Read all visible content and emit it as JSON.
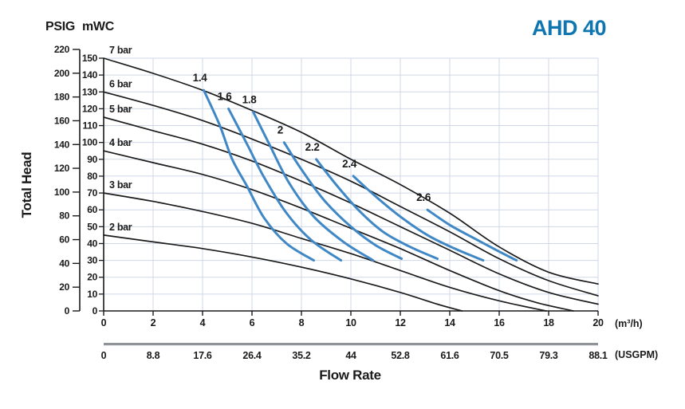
{
  "colors": {
    "model_blue": "#0f76b0",
    "impeller_curve_blue": "#3f88c5",
    "pressure_curve_black": "#1b1b1b",
    "grid": "#cfd7e7",
    "usgpm_bar": "#8f9296",
    "text": "#1a1a1a"
  },
  "chart_data": {
    "type": "line",
    "title": "AHD 40",
    "xlabel": "Flow Rate",
    "ylabel": "Total Head",
    "grid": true,
    "legend": "none",
    "x_axis_primary": {
      "unit": "(m³/h)",
      "tick_labels": [
        "0",
        "2",
        "4",
        "6",
        "8",
        "10",
        "12",
        "14",
        "16",
        "18",
        "20"
      ],
      "tick_values": [
        0,
        2,
        4,
        6,
        8,
        10,
        12,
        14,
        16,
        18,
        20
      ],
      "range": [
        0,
        20
      ]
    },
    "x_axis_secondary": {
      "unit": "(USGPM)",
      "tick_labels": [
        "0",
        "8.8",
        "17.6",
        "26.4",
        "35.2",
        "44",
        "52.8",
        "61.6",
        "70.5",
        "79.3",
        "88.1"
      ]
    },
    "y_axis_primary": {
      "unit": "mWC",
      "tick_values": [
        150,
        140,
        130,
        120,
        110,
        100,
        90,
        80,
        70,
        60,
        50,
        40,
        30,
        20,
        10,
        0
      ],
      "range": [
        0,
        150
      ]
    },
    "y_axis_secondary": {
      "unit": "PSIG",
      "tick_values": [
        220,
        200,
        180,
        160,
        140,
        120,
        100,
        80,
        60,
        40,
        20,
        0
      ],
      "range": [
        0,
        220
      ]
    },
    "pressure_curves": [
      {
        "label": "7 bar",
        "points": [
          [
            0,
            150
          ],
          [
            2,
            141
          ],
          [
            4,
            131
          ],
          [
            6,
            119
          ],
          [
            8,
            106
          ],
          [
            10,
            90
          ],
          [
            12,
            75
          ],
          [
            14,
            58
          ],
          [
            16,
            38
          ],
          [
            18,
            23
          ],
          [
            20,
            16
          ]
        ]
      },
      {
        "label": "6 bar",
        "points": [
          [
            0,
            130
          ],
          [
            2,
            122
          ],
          [
            4,
            113
          ],
          [
            6,
            102
          ],
          [
            8,
            90
          ],
          [
            10,
            77
          ],
          [
            12,
            62
          ],
          [
            14,
            47
          ],
          [
            16,
            31
          ],
          [
            18,
            18
          ],
          [
            20,
            9
          ]
        ]
      },
      {
        "label": "5 bar",
        "points": [
          [
            0,
            115
          ],
          [
            2,
            107
          ],
          [
            4,
            99
          ],
          [
            6,
            89
          ],
          [
            8,
            77
          ],
          [
            10,
            64
          ],
          [
            12,
            50
          ],
          [
            14,
            36
          ],
          [
            16,
            22
          ],
          [
            18,
            11
          ],
          [
            20,
            4
          ]
        ]
      },
      {
        "label": "4 bar",
        "points": [
          [
            0,
            95
          ],
          [
            2,
            88
          ],
          [
            4,
            81
          ],
          [
            6,
            72
          ],
          [
            8,
            61
          ],
          [
            10,
            49
          ],
          [
            12,
            37
          ],
          [
            14,
            24
          ],
          [
            16,
            12
          ],
          [
            17.5,
            5
          ],
          [
            19,
            0
          ]
        ]
      },
      {
        "label": "3 bar",
        "points": [
          [
            0,
            70
          ],
          [
            2,
            65
          ],
          [
            4,
            59
          ],
          [
            6,
            52
          ],
          [
            8,
            43
          ],
          [
            10,
            34
          ],
          [
            12,
            24
          ],
          [
            14,
            14
          ],
          [
            16,
            6
          ],
          [
            17.9,
            0
          ]
        ]
      },
      {
        "label": "2 bar",
        "points": [
          [
            0,
            45
          ],
          [
            2,
            41
          ],
          [
            4,
            37
          ],
          [
            6,
            32
          ],
          [
            8,
            26
          ],
          [
            10,
            19
          ],
          [
            12,
            11
          ],
          [
            13.5,
            4
          ],
          [
            14.5,
            0
          ]
        ]
      }
    ],
    "impeller_curves": [
      {
        "label": "1.4",
        "points": [
          [
            4.05,
            131
          ],
          [
            4.7,
            110
          ],
          [
            5.2,
            90
          ],
          [
            5.8,
            74
          ],
          [
            6.5,
            55
          ],
          [
            7.4,
            40
          ],
          [
            8.5,
            30
          ]
        ]
      },
      {
        "label": "1.6",
        "points": [
          [
            5.05,
            120
          ],
          [
            5.8,
            99
          ],
          [
            6.5,
            79
          ],
          [
            7.4,
            58
          ],
          [
            8.4,
            42
          ],
          [
            9.6,
            30
          ]
        ]
      },
      {
        "label": "1.8",
        "points": [
          [
            6.05,
            118
          ],
          [
            6.7,
            99
          ],
          [
            7.5,
            76
          ],
          [
            8.5,
            56
          ],
          [
            9.7,
            41
          ],
          [
            10.9,
            30
          ]
        ]
      },
      {
        "label": "2",
        "points": [
          [
            7.3,
            100
          ],
          [
            8.0,
            84
          ],
          [
            8.9,
            66
          ],
          [
            10.0,
            50
          ],
          [
            11.0,
            39
          ],
          [
            12.05,
            31
          ]
        ]
      },
      {
        "label": "2.2",
        "points": [
          [
            8.6,
            90
          ],
          [
            9.4,
            75
          ],
          [
            10.3,
            60
          ],
          [
            11.3,
            47
          ],
          [
            12.4,
            38
          ],
          [
            13.5,
            31
          ]
        ]
      },
      {
        "label": "2.4",
        "points": [
          [
            10.1,
            80
          ],
          [
            11.0,
            68
          ],
          [
            12.0,
            56
          ],
          [
            13.1,
            45
          ],
          [
            14.2,
            37
          ],
          [
            15.35,
            30
          ]
        ]
      },
      {
        "label": "2.6",
        "points": [
          [
            13.1,
            60
          ],
          [
            14.0,
            51
          ],
          [
            15.0,
            43
          ],
          [
            15.9,
            36
          ],
          [
            16.7,
            30
          ]
        ]
      }
    ]
  }
}
